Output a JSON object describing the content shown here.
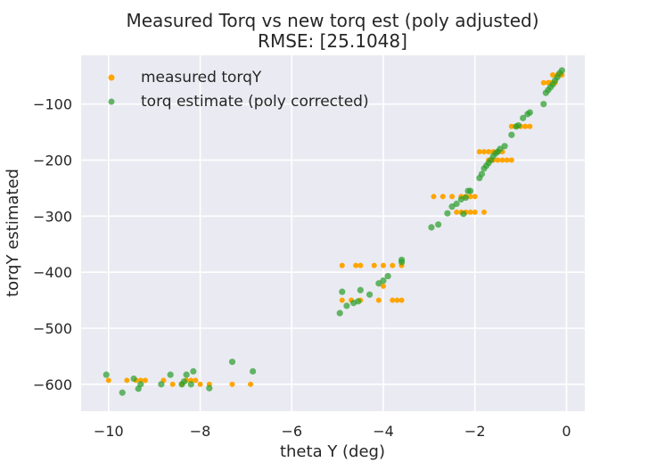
{
  "chart_data": {
    "type": "scatter",
    "title": "Measured Torq vs new torq est (poly adjusted)",
    "subtitle": "RMSE: [25.1048]",
    "xlabel": "theta Y (deg)",
    "ylabel": "torqY estimated",
    "xlim": [
      -10.6,
      0.4
    ],
    "ylim": [
      -648,
      -13
    ],
    "xticks": [
      -10,
      -8,
      -6,
      -4,
      -2,
      0
    ],
    "yticks": [
      -600,
      -500,
      -400,
      -300,
      -200,
      -100
    ],
    "grid": true,
    "legend_position": "top-left",
    "series": [
      {
        "name": "measured torqY",
        "color": "#ffa500",
        "points": [
          [
            -10.0,
            -593
          ],
          [
            -9.6,
            -593
          ],
          [
            -9.4,
            -593
          ],
          [
            -9.3,
            -593
          ],
          [
            -9.2,
            -593
          ],
          [
            -8.8,
            -593
          ],
          [
            -8.6,
            -600
          ],
          [
            -8.4,
            -600
          ],
          [
            -8.3,
            -593
          ],
          [
            -8.2,
            -593
          ],
          [
            -8.1,
            -593
          ],
          [
            -8.0,
            -600
          ],
          [
            -7.8,
            -600
          ],
          [
            -7.3,
            -600
          ],
          [
            -6.9,
            -600
          ],
          [
            -4.9,
            -388
          ],
          [
            -4.6,
            -388
          ],
          [
            -4.5,
            -388
          ],
          [
            -4.2,
            -388
          ],
          [
            -4.0,
            -388
          ],
          [
            -3.8,
            -388
          ],
          [
            -3.6,
            -388
          ],
          [
            -4.9,
            -450
          ],
          [
            -4.7,
            -450
          ],
          [
            -4.5,
            -450
          ],
          [
            -4.1,
            -450
          ],
          [
            -3.8,
            -450
          ],
          [
            -3.7,
            -450
          ],
          [
            -3.6,
            -450
          ],
          [
            -4.0,
            -425
          ],
          [
            -2.9,
            -265
          ],
          [
            -2.7,
            -265
          ],
          [
            -2.5,
            -265
          ],
          [
            -2.3,
            -265
          ],
          [
            -2.2,
            -265
          ],
          [
            -2.1,
            -265
          ],
          [
            -2.0,
            -265
          ],
          [
            -2.4,
            -293
          ],
          [
            -2.3,
            -293
          ],
          [
            -2.2,
            -293
          ],
          [
            -2.1,
            -293
          ],
          [
            -2.0,
            -293
          ],
          [
            -1.8,
            -293
          ],
          [
            -1.9,
            -185
          ],
          [
            -1.8,
            -185
          ],
          [
            -1.7,
            -185
          ],
          [
            -1.6,
            -185
          ],
          [
            -1.5,
            -185
          ],
          [
            -1.4,
            -185
          ],
          [
            -1.7,
            -200
          ],
          [
            -1.6,
            -200
          ],
          [
            -1.5,
            -200
          ],
          [
            -1.4,
            -200
          ],
          [
            -1.3,
            -200
          ],
          [
            -1.2,
            -200
          ],
          [
            -1.2,
            -140
          ],
          [
            -1.1,
            -140
          ],
          [
            -1.0,
            -140
          ],
          [
            -0.9,
            -140
          ],
          [
            -0.8,
            -140
          ],
          [
            -0.5,
            -62
          ],
          [
            -0.4,
            -62
          ],
          [
            -0.35,
            -62
          ],
          [
            -0.3,
            -62
          ],
          [
            -0.25,
            -62
          ],
          [
            -0.3,
            -48
          ],
          [
            -0.2,
            -48
          ],
          [
            -0.15,
            -48
          ],
          [
            -0.1,
            -48
          ]
        ]
      },
      {
        "name": "torq estimate (poly corrected)",
        "color": "#2ca02c",
        "points": [
          [
            -10.05,
            -583
          ],
          [
            -9.7,
            -615
          ],
          [
            -9.45,
            -590
          ],
          [
            -9.35,
            -608
          ],
          [
            -9.3,
            -600
          ],
          [
            -8.85,
            -600
          ],
          [
            -8.65,
            -583
          ],
          [
            -8.4,
            -600
          ],
          [
            -8.35,
            -595
          ],
          [
            -8.3,
            -583
          ],
          [
            -8.2,
            -600
          ],
          [
            -8.15,
            -577
          ],
          [
            -7.8,
            -607
          ],
          [
            -7.3,
            -560
          ],
          [
            -6.85,
            -577
          ],
          [
            -4.95,
            -473
          ],
          [
            -4.9,
            -435
          ],
          [
            -4.8,
            -460
          ],
          [
            -4.65,
            -455
          ],
          [
            -4.55,
            -452
          ],
          [
            -4.5,
            -432
          ],
          [
            -4.3,
            -440
          ],
          [
            -4.1,
            -420
          ],
          [
            -4.0,
            -415
          ],
          [
            -3.9,
            -407
          ],
          [
            -3.6,
            -382
          ],
          [
            -3.6,
            -378
          ],
          [
            -2.95,
            -320
          ],
          [
            -2.8,
            -315
          ],
          [
            -2.6,
            -295
          ],
          [
            -2.5,
            -283
          ],
          [
            -2.4,
            -278
          ],
          [
            -2.3,
            -270
          ],
          [
            -2.25,
            -296
          ],
          [
            -2.2,
            -267
          ],
          [
            -2.15,
            -255
          ],
          [
            -2.1,
            -255
          ],
          [
            -1.9,
            -232
          ],
          [
            -1.85,
            -225
          ],
          [
            -1.8,
            -215
          ],
          [
            -1.75,
            -210
          ],
          [
            -1.7,
            -205
          ],
          [
            -1.65,
            -200
          ],
          [
            -1.6,
            -193
          ],
          [
            -1.55,
            -188
          ],
          [
            -1.5,
            -185
          ],
          [
            -1.45,
            -180
          ],
          [
            -1.35,
            -175
          ],
          [
            -1.2,
            -155
          ],
          [
            -1.1,
            -140
          ],
          [
            -1.05,
            -138
          ],
          [
            -0.95,
            -125
          ],
          [
            -0.85,
            -118
          ],
          [
            -0.8,
            -115
          ],
          [
            -0.5,
            -100
          ],
          [
            -0.45,
            -80
          ],
          [
            -0.4,
            -75
          ],
          [
            -0.35,
            -70
          ],
          [
            -0.3,
            -65
          ],
          [
            -0.25,
            -58
          ],
          [
            -0.2,
            -52
          ],
          [
            -0.15,
            -45
          ],
          [
            -0.1,
            -40
          ]
        ]
      }
    ]
  }
}
